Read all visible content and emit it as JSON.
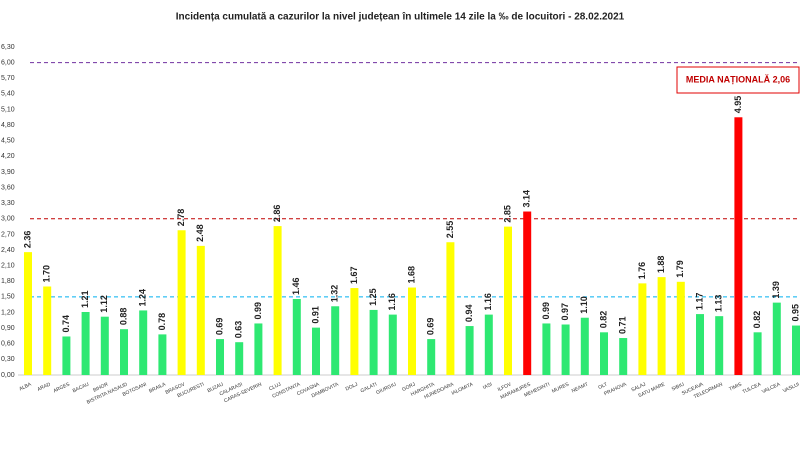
{
  "chart_data": {
    "type": "bar",
    "title": "Incidența cumulată a cazurilor la nivel județean în ultimele 14 zile la ‰ de locuitori - 28.02.2021",
    "categories": [
      "ALBA",
      "ARAD",
      "ARGES",
      "BACAU",
      "BIHOR",
      "BISTRITA NASAUD",
      "BOTOSANI",
      "BRAILA",
      "BRASOV",
      "BUCURESTI",
      "BUZAU",
      "CALARASI",
      "CARAS-SEVERIN",
      "CLUJ",
      "CONSTANTA",
      "COVASNA",
      "DAMBOVITA",
      "DOLJ",
      "GALATI",
      "GIURGIU",
      "GORJ",
      "HARGHITA",
      "HUNEDOARA",
      "IALOMITA",
      "IASI",
      "ILFOV",
      "MARAMURES",
      "MEHEDINTI",
      "MURES",
      "NEAMT",
      "OLT",
      "PRAHOVA",
      "SALAJ",
      "SATU MARE",
      "SIBIU",
      "SUCEAVA",
      "TELEORMAN",
      "TIMIS",
      "TULCEA",
      "VALCEA",
      "VASLUI"
    ],
    "values": [
      2.36,
      1.7,
      0.74,
      1.21,
      1.12,
      0.88,
      1.24,
      0.78,
      2.78,
      2.48,
      0.69,
      0.63,
      0.99,
      2.86,
      1.46,
      0.91,
      1.32,
      1.67,
      1.25,
      1.16,
      1.68,
      0.69,
      2.55,
      0.94,
      1.16,
      2.85,
      3.14,
      0.99,
      0.97,
      1.1,
      0.82,
      0.71,
      1.76,
      1.88,
      1.79,
      1.17,
      1.13,
      4.95,
      0.82,
      1.39,
      0.95
    ],
    "value_labels": [
      "2.36",
      "1.70",
      "0.74",
      "1.21",
      "1.12",
      "0.88",
      "1.24",
      "0.78",
      "2.78",
      "2.48",
      "0.69",
      "0.63",
      "0.99",
      "2.86",
      "1.46",
      "0.91",
      "1.32",
      "1.67",
      "1.25",
      "1.16",
      "1.68",
      "0.69",
      "2.55",
      "0.94",
      "1.16",
      "2.85",
      "3.14",
      "0.99",
      "0.97",
      "1.10",
      "0.82",
      "0.71",
      "1.76",
      "1.88",
      "1.79",
      "1.17",
      "1.13",
      "4.95",
      "0.82",
      "1.39",
      "0.95"
    ],
    "colors": [
      "#ffff00",
      "#ffff00",
      "#2ee872",
      "#2ee872",
      "#2ee872",
      "#2ee872",
      "#2ee872",
      "#2ee872",
      "#ffff00",
      "#ffff00",
      "#2ee872",
      "#2ee872",
      "#2ee872",
      "#ffff00",
      "#2ee872",
      "#2ee872",
      "#2ee872",
      "#ffff00",
      "#2ee872",
      "#2ee872",
      "#ffff00",
      "#2ee872",
      "#ffff00",
      "#2ee872",
      "#2ee872",
      "#ffff00",
      "#ff0000",
      "#2ee872",
      "#2ee872",
      "#2ee872",
      "#2ee872",
      "#2ee872",
      "#ffff00",
      "#ffff00",
      "#ffff00",
      "#2ee872",
      "#2ee872",
      "#ff0000",
      "#2ee872",
      "#2ee872",
      "#2ee872"
    ],
    "ylim": [
      0,
      6.3
    ],
    "yticks": [
      {
        "value": 0,
        "label": "0,00"
      },
      {
        "value": 0.3,
        "label": "0,30"
      },
      {
        "value": 0.6,
        "label": "0,60"
      },
      {
        "value": 0.9,
        "label": "0,90"
      },
      {
        "value": 1.2,
        "label": "1,20"
      },
      {
        "value": 1.5,
        "label": "1,50"
      },
      {
        "value": 1.8,
        "label": "1,80"
      },
      {
        "value": 2.1,
        "label": "2,10"
      },
      {
        "value": 2.4,
        "label": "2,40"
      },
      {
        "value": 2.7,
        "label": "2,70"
      },
      {
        "value": 3,
        "label": "3,00"
      },
      {
        "value": 3.3,
        "label": "3,30"
      },
      {
        "value": 3.6,
        "label": "3,60"
      },
      {
        "value": 3.9,
        "label": "3,90"
      },
      {
        "value": 4.2,
        "label": "4,20"
      },
      {
        "value": 4.5,
        "label": "4,50"
      },
      {
        "value": 4.8,
        "label": "4,80"
      },
      {
        "value": 5.1,
        "label": "5,10"
      },
      {
        "value": 5.4,
        "label": "5,40"
      },
      {
        "value": 5.7,
        "label": "5,70"
      },
      {
        "value": 6,
        "label": "6,00"
      },
      {
        "value": 6.3,
        "label": "6,30"
      }
    ],
    "reference_lines": [
      {
        "value": 6,
        "color": "#7030a0"
      },
      {
        "value": 3,
        "color": "#c00000"
      },
      {
        "value": 1.5,
        "color": "#00b0f0"
      }
    ],
    "annotation": "MEDIA NAȚIONALĂ 2,06",
    "grid": false
  }
}
